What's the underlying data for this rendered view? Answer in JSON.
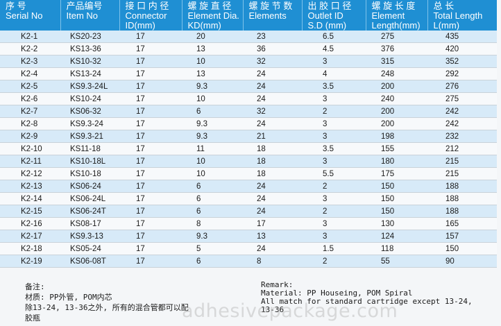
{
  "table": {
    "headers": [
      [
        "序    号",
        "Serial No"
      ],
      [
        "产品编号",
        "Item No"
      ],
      [
        "接 口 内 径",
        "Connector",
        "ID(mm)"
      ],
      [
        "螺 旋 直 径",
        "Element Dia.",
        "KD(mm)"
      ],
      [
        "螺 旋 节 数",
        "Elements"
      ],
      [
        "出 胶 口 径",
        "Outlet ID",
        "S.D (mm)"
      ],
      [
        "螺 旋 长 度",
        "Element",
        "Length(mm)"
      ],
      [
        "总         长",
        "Total Length",
        "L(mm)"
      ]
    ],
    "rows": [
      [
        "K2-1",
        "KS20-23",
        "17",
        "20",
        "23",
        "6.5",
        "275",
        "435"
      ],
      [
        "K2-2",
        "KS13-36",
        "17",
        "13",
        "36",
        "4.5",
        "376",
        "420"
      ],
      [
        "K2-3",
        "KS10-32",
        "17",
        "10",
        "32",
        "3",
        "315",
        "352"
      ],
      [
        "K2-4",
        "KS13-24",
        "17",
        "13",
        "24",
        "4",
        "248",
        "292"
      ],
      [
        "K2-5",
        "KS9.3-24L",
        "17",
        "9.3",
        "24",
        "3.5",
        "200",
        "276"
      ],
      [
        "K2-6",
        "KS10-24",
        "17",
        "10",
        "24",
        "3",
        "240",
        "275"
      ],
      [
        "K2-7",
        "KS06-32",
        "17",
        "6",
        "32",
        "2",
        "200",
        "242"
      ],
      [
        "K2-8",
        "KS9.3-24",
        "17",
        "9.3",
        "24",
        "3",
        "200",
        "242"
      ],
      [
        "K2-9",
        "KS9.3-21",
        "17",
        "9.3",
        "21",
        "3",
        "198",
        "232"
      ],
      [
        "K2-10",
        "KS11-18",
        "17",
        "11",
        "18",
        "3.5",
        "155",
        "212"
      ],
      [
        "K2-11",
        "KS10-18L",
        "17",
        "10",
        "18",
        "3",
        "180",
        "215"
      ],
      [
        "K2-12",
        "KS10-18",
        "17",
        "10",
        "18",
        "5.5",
        "175",
        "215"
      ],
      [
        "K2-13",
        "KS06-24",
        "17",
        "6",
        "24",
        "2",
        "150",
        "188"
      ],
      [
        "K2-14",
        "KS06-24L",
        "17",
        "6",
        "24",
        "3",
        "150",
        "188"
      ],
      [
        "K2-15",
        "KS06-24T",
        "17",
        "6",
        "24",
        "2",
        "150",
        "188"
      ],
      [
        "K2-16",
        "KS08-17",
        "17",
        "8",
        "17",
        "3",
        "130",
        "165"
      ],
      [
        "K2-17",
        "KS9.3-13",
        "17",
        "9.3",
        "13",
        "3",
        "124",
        "157"
      ],
      [
        "K2-18",
        "KS05-24",
        "17",
        "5",
        "24",
        "1.5",
        "118",
        "150"
      ],
      [
        "K2-19",
        "KS06-08T",
        "17",
        "6",
        "8",
        "2",
        "55",
        "90"
      ]
    ]
  },
  "notes": {
    "left": [
      "备注:",
      "材质: PP外管, POM内芯",
      "除13-24, 13-36之外, 所有的混合管都可以配",
      "胶瓶"
    ],
    "right": [
      "Remark:",
      "Material: PP Houseing, POM Spiral",
      "All match for standard cartridge except 13-24,",
      "13-36"
    ]
  },
  "watermark": "adhesivepackage.com"
}
